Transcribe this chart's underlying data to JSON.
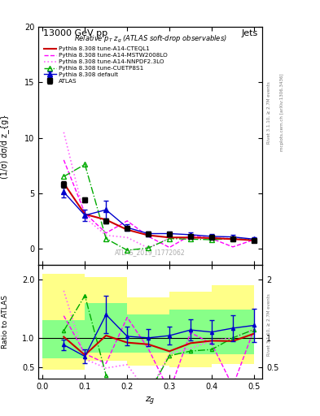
{
  "title_top": "13000 GeV pp",
  "title_right": "Jets",
  "plot_title": "Relative p_{T} z_{g} (ATLAS soft-drop observables)",
  "ylabel_main": "(1/σ) dσ/d z_{g}",
  "ylabel_ratio": "Ratio to ATLAS",
  "xlabel": "z_{g}",
  "watermark": "ATLAS_2019_I1772062",
  "rivet_label": "Rivet 3.1.10, ≥ 2.7M events",
  "arxiv_label": "mcplots.cern.ch [arXiv:1306.3436]",
  "zg_atlas": [
    0.05,
    0.1,
    0.15,
    0.2,
    0.25,
    0.3,
    0.35,
    0.4,
    0.45,
    0.5
  ],
  "atlas_y": [
    5.8,
    4.4,
    2.5,
    1.85,
    1.35,
    1.3,
    1.1,
    1.0,
    0.9,
    0.7
  ],
  "atlas_yerr": [
    0.3,
    0.25,
    0.2,
    0.15,
    0.15,
    0.15,
    0.15,
    0.15,
    0.15,
    0.15
  ],
  "zg_mc": [
    0.05,
    0.1,
    0.15,
    0.2,
    0.25,
    0.3,
    0.35,
    0.4,
    0.45,
    0.5
  ],
  "default_y": [
    5.1,
    3.0,
    3.5,
    1.9,
    1.35,
    1.35,
    1.25,
    1.1,
    1.05,
    0.85
  ],
  "default_yerr": [
    0.5,
    0.5,
    0.8,
    0.3,
    0.2,
    0.2,
    0.2,
    0.2,
    0.2,
    0.2
  ],
  "cteql1_y": [
    5.9,
    3.1,
    2.6,
    1.7,
    1.2,
    1.0,
    1.0,
    0.95,
    0.85,
    0.75
  ],
  "mstw_y": [
    8.0,
    3.2,
    1.4,
    2.5,
    1.1,
    0.1,
    1.2,
    0.9,
    0.15,
    0.8
  ],
  "nnpdf_y": [
    10.5,
    2.8,
    1.2,
    1.0,
    0.05,
    0.95,
    0.9,
    0.95,
    0.9,
    0.8
  ],
  "cuetp_y": [
    6.5,
    7.6,
    0.9,
    -0.15,
    0.05,
    0.9,
    0.85,
    0.8,
    0.9,
    0.8
  ],
  "yellow_xbins": [
    0.0,
    0.1,
    0.2,
    0.3,
    0.4,
    0.5
  ],
  "yellow_lo": [
    0.45,
    0.6,
    0.52,
    0.5,
    0.55,
    0.55
  ],
  "yellow_hi": [
    2.1,
    2.05,
    1.7,
    1.8,
    1.9,
    1.9
  ],
  "green_lo": [
    0.65,
    0.75,
    0.75,
    0.72,
    0.72,
    0.72
  ],
  "green_hi": [
    1.3,
    1.6,
    1.4,
    1.48,
    1.48,
    1.48
  ],
  "colors": {
    "atlas": "#000000",
    "default": "#0000cc",
    "cteql1": "#cc0000",
    "mstw": "#ff00ff",
    "nnpdf": "#ff66ff",
    "cuetp": "#00aa00"
  },
  "legend_labels": [
    "ATLAS",
    "Pythia 8.308 default",
    "Pythia 8.308 tune-A14-CTEQL1",
    "Pythia 8.308 tune-A14-MSTW2008LO",
    "Pythia 8.308 tune-A14-NNPDF2.3LO",
    "Pythia 8.308 tune-CUETP8S1"
  ],
  "main_ylim": [
    -1.5,
    20
  ],
  "ratio_ylim": [
    0.3,
    2.25
  ],
  "xlim": [
    -0.01,
    0.52
  ]
}
